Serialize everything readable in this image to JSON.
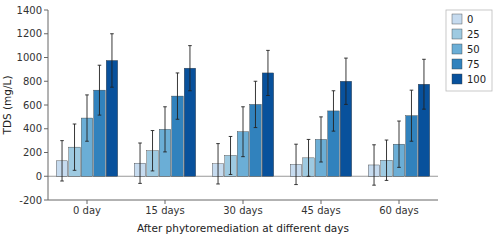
{
  "chart_data": {
    "type": "bar",
    "xlabel": "After phytoremediation at different days",
    "ylabel": "TDS (mg/L)",
    "categories": [
      "0 day",
      "15 days",
      "30 days",
      "45 days",
      "60 days"
    ],
    "series": [
      {
        "name": "0",
        "color": "#c6dbef",
        "values": [
          130,
          110,
          105,
          100,
          95
        ],
        "errors": [
          170,
          170,
          170,
          170,
          170
        ]
      },
      {
        "name": "25",
        "color": "#9ecae1",
        "values": [
          245,
          215,
          175,
          155,
          135
        ],
        "errors": [
          195,
          170,
          160,
          155,
          170
        ]
      },
      {
        "name": "50",
        "color": "#6baed6",
        "values": [
          490,
          395,
          375,
          310,
          270
        ],
        "errors": [
          195,
          190,
          210,
          190,
          195
        ]
      },
      {
        "name": "75",
        "color": "#3182bd",
        "values": [
          725,
          675,
          605,
          550,
          510
        ],
        "errors": [
          210,
          195,
          195,
          170,
          215
        ]
      },
      {
        "name": "100",
        "color": "#08519c",
        "values": [
          975,
          910,
          870,
          800,
          775
        ],
        "errors": [
          225,
          190,
          190,
          195,
          210
        ]
      }
    ],
    "ylim": [
      -200,
      1400
    ],
    "yticks": [
      -200,
      0,
      200,
      400,
      600,
      800,
      1000,
      1200,
      1400
    ],
    "grid": false,
    "legend": "right"
  }
}
